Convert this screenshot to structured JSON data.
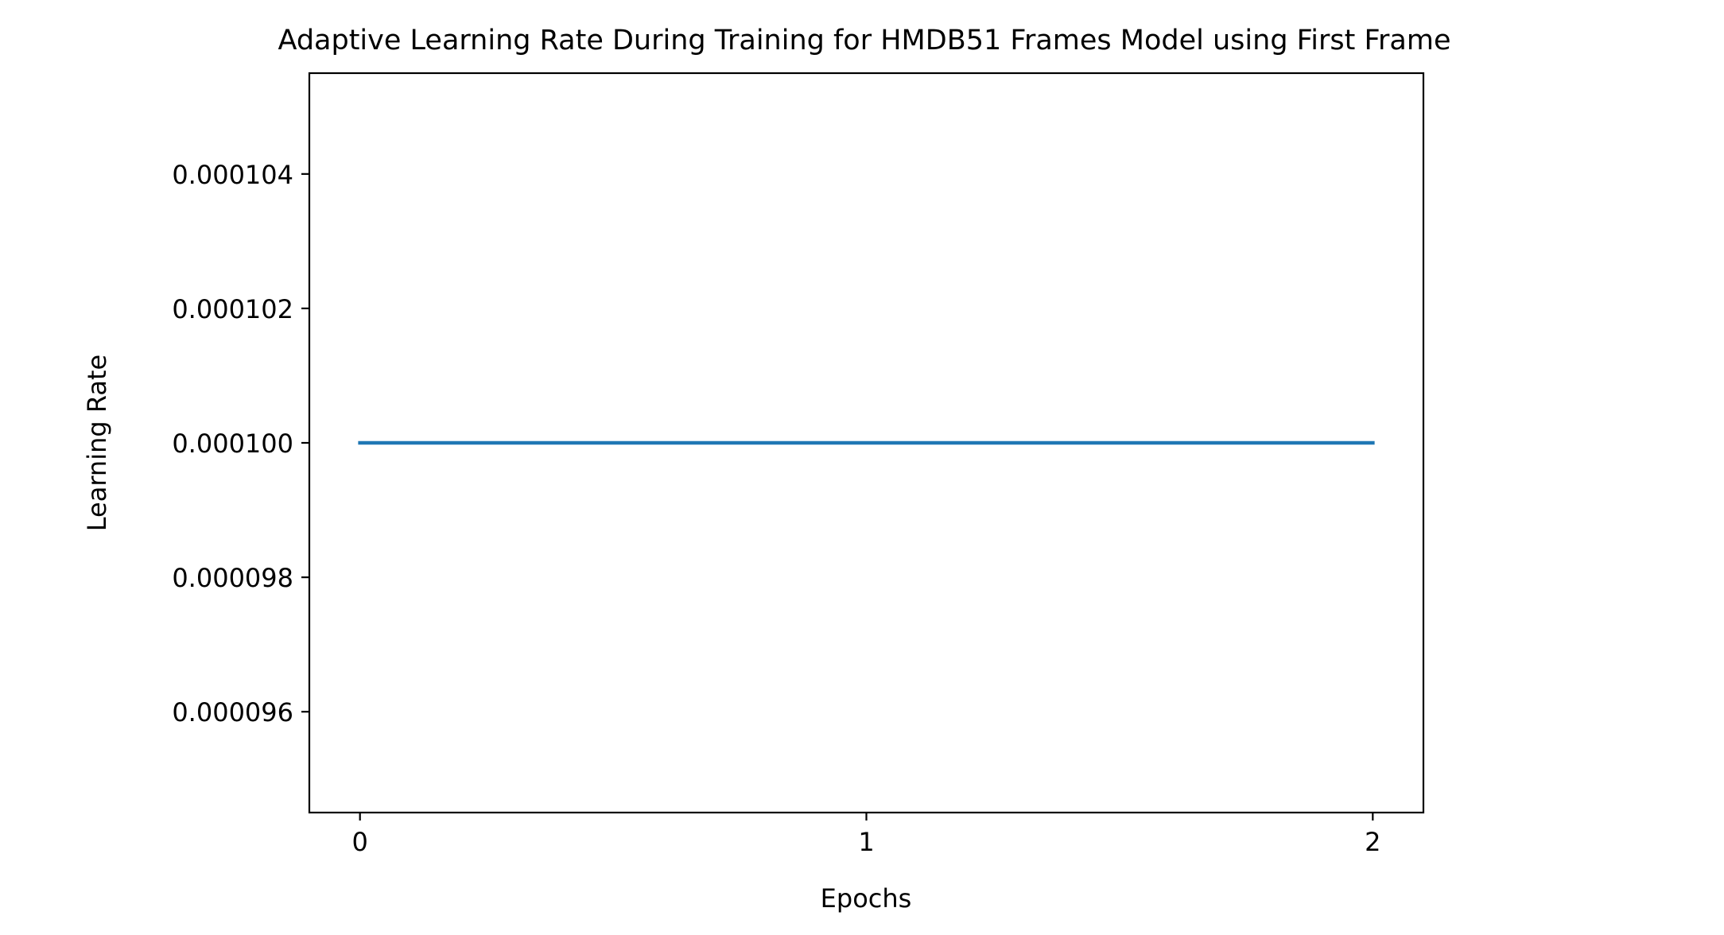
{
  "chart_data": {
    "type": "line",
    "title": "Adaptive Learning Rate During Training for HMDB51 Frames Model using First Frame",
    "xlabel": "Epochs",
    "ylabel": "Learning Rate",
    "x": [
      0,
      1,
      2
    ],
    "series": [
      {
        "values": [
          0.0001,
          0.0001,
          0.0001
        ],
        "color": "#1f77b4"
      }
    ],
    "xlim": [
      -0.1,
      2.1
    ],
    "ylim": [
      9.45e-05,
      0.0001055
    ],
    "xticks": [
      0,
      1,
      2
    ],
    "xtick_labels": [
      "0",
      "1",
      "2"
    ],
    "yticks": [
      9.6e-05,
      9.8e-05,
      0.0001,
      0.000102,
      0.000104
    ],
    "ytick_labels": [
      "0.000096",
      "0.000098",
      "0.000100",
      "0.000102",
      "0.000104"
    ],
    "grid": false,
    "legend": "none"
  }
}
